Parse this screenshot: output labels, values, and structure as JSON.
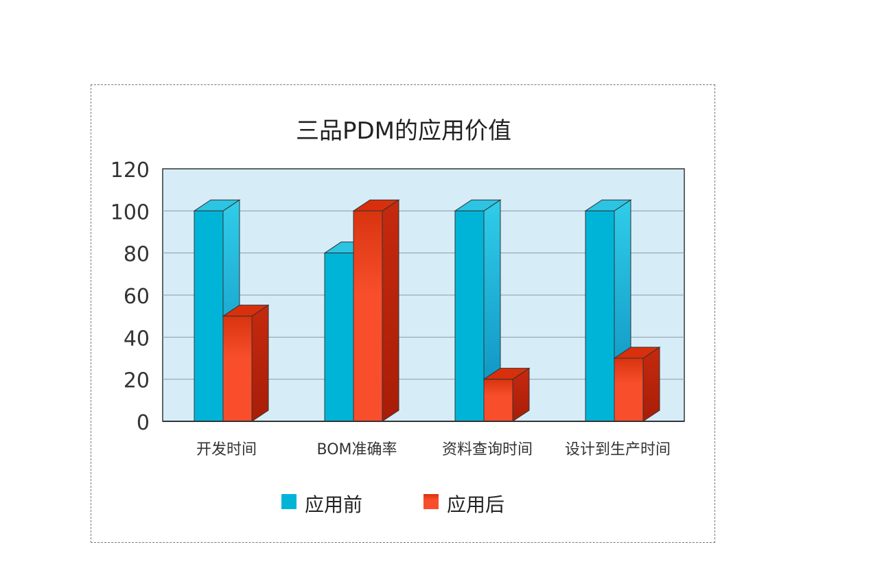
{
  "chart_data": {
    "type": "bar",
    "title": "三品PDM的应用价值",
    "categories": [
      "开发时间",
      "BOM准确率",
      "资料查询时间",
      "设计到生产时间"
    ],
    "series": [
      {
        "name": "应用前",
        "values": [
          100,
          80,
          100,
          100
        ],
        "color": "#00b4d8"
      },
      {
        "name": "应用后",
        "values": [
          50,
          100,
          20,
          30
        ],
        "color": "#f24a28"
      }
    ],
    "yticks": [
      0,
      20,
      40,
      60,
      80,
      100,
      120
    ],
    "ylim": [
      0,
      120
    ],
    "xlabel": "",
    "ylabel": "",
    "grid": true,
    "legend": "bottom",
    "plot_background": "#d6edf8",
    "style": "3d-column"
  }
}
